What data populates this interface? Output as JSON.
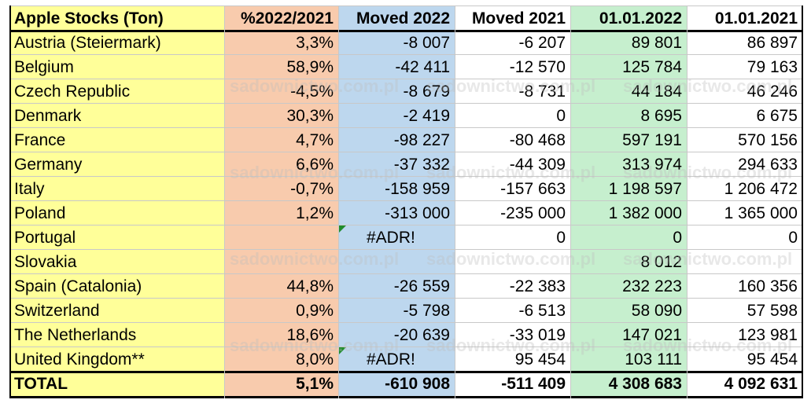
{
  "columns": [
    {
      "key": "country",
      "label": "Apple Stocks (Ton)",
      "bg": "#ffff99"
    },
    {
      "key": "pct",
      "label": "%2022/2021",
      "bg": "#f8cbad"
    },
    {
      "key": "moved2022",
      "label": "Moved 2022",
      "bg": "#bdd7ee"
    },
    {
      "key": "moved2021",
      "label": "Moved 2021",
      "bg": "#ffffff"
    },
    {
      "key": "d2022",
      "label": "01.01.2022",
      "bg": "#c6efce"
    },
    {
      "key": "d2021",
      "label": "01.01.2021",
      "bg": "#ffffff"
    }
  ],
  "rows": [
    [
      "Austria (Steiermark)",
      "3,3%",
      "-8 007",
      "-6 207",
      "89 801",
      "86 897"
    ],
    [
      "Belgium",
      "58,9%",
      "-42 411",
      "-12 570",
      "125 784",
      "79 163"
    ],
    [
      "Czech Republic",
      "-4,5%",
      "-8 679",
      "-8 731",
      "44 184",
      "46 246"
    ],
    [
      "Denmark",
      "30,3%",
      "-2 419",
      "0",
      "8 695",
      "6 675"
    ],
    [
      "France",
      "4,7%",
      "-98 227",
      "-80 468",
      "597 191",
      "570 156"
    ],
    [
      "Germany",
      "6,6%",
      "-37 332",
      "-44 309",
      "313 974",
      "294 633"
    ],
    [
      "Italy",
      "-0,7%",
      "-158 959",
      "-157 663",
      "1 198 597",
      "1 206 472"
    ],
    [
      "Poland",
      "1,2%",
      "-313 000",
      "-235 000",
      "1 382 000",
      "1 365 000"
    ],
    [
      "Portugal",
      "",
      "#ADR!",
      "0",
      "0",
      "0"
    ],
    [
      "Slovakia",
      "",
      "",
      "",
      "8 012",
      ""
    ],
    [
      "Spain (Catalonia)",
      "44,8%",
      "-26 559",
      "-22 383",
      "232 223",
      "160 356"
    ],
    [
      "Switzerland",
      "0,9%",
      "-5 798",
      "-6 513",
      "58 090",
      "57 598"
    ],
    [
      "The Netherlands",
      "18,6%",
      "-20 639",
      "-33 019",
      "147 021",
      "123 981"
    ],
    [
      "United Kingdom**",
      "8,0%",
      "#ADR!",
      "95 454",
      "103 111",
      "95 454"
    ]
  ],
  "total": [
    "TOTAL",
    "5,1%",
    "-610 908",
    "-511 409",
    "4 308 683",
    "4 092 631"
  ],
  "error_marker_color": "#1f8c2c",
  "watermark": "sadownictwo.com.pl"
}
